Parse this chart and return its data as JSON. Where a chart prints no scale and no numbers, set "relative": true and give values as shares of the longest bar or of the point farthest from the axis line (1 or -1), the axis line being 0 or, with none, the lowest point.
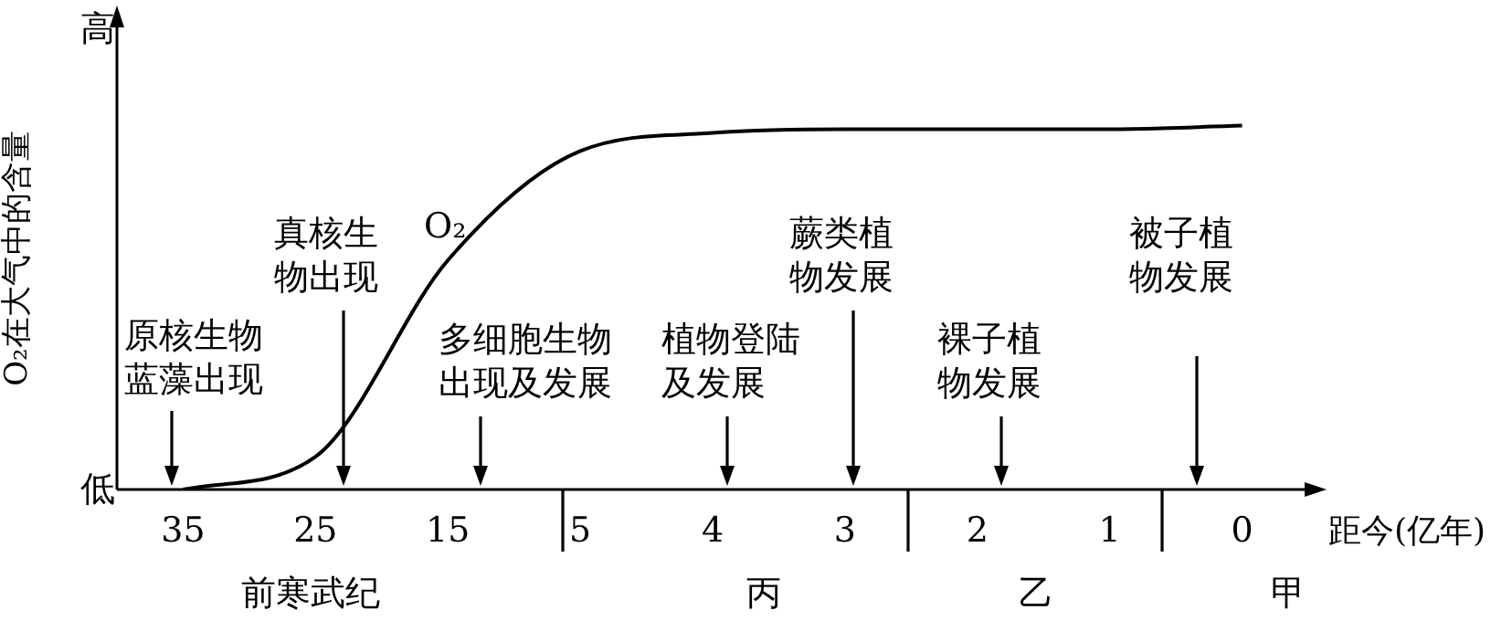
{
  "chart_data": {
    "type": "line",
    "ylabel": "O₂在大气中的含量",
    "xlabel": "距今(亿年)",
    "categories": [
      "35",
      "25",
      "15",
      "5",
      "4",
      "3",
      "2",
      "1",
      "0"
    ],
    "series": [
      {
        "name": "O₂",
        "color": "#000000",
        "values": [
          0.0,
          0.09,
          0.63,
          0.93,
          0.98,
          0.99,
          0.99,
          0.99,
          1
        ]
      }
    ],
    "relative": true,
    "grid": false,
    "legend": false,
    "marker": "none",
    "line_style": "solid",
    "annotations": [
      "原核生物蓝藻出现",
      "真核生物出现",
      "多细胞生物出现及发展",
      "植物登陆及发展",
      "蕨类植物发展",
      "裸子植物发展",
      "被子植物发展",
      "前寒武纪",
      "丙",
      "乙",
      "甲",
      "高",
      "低"
    ]
  }
}
